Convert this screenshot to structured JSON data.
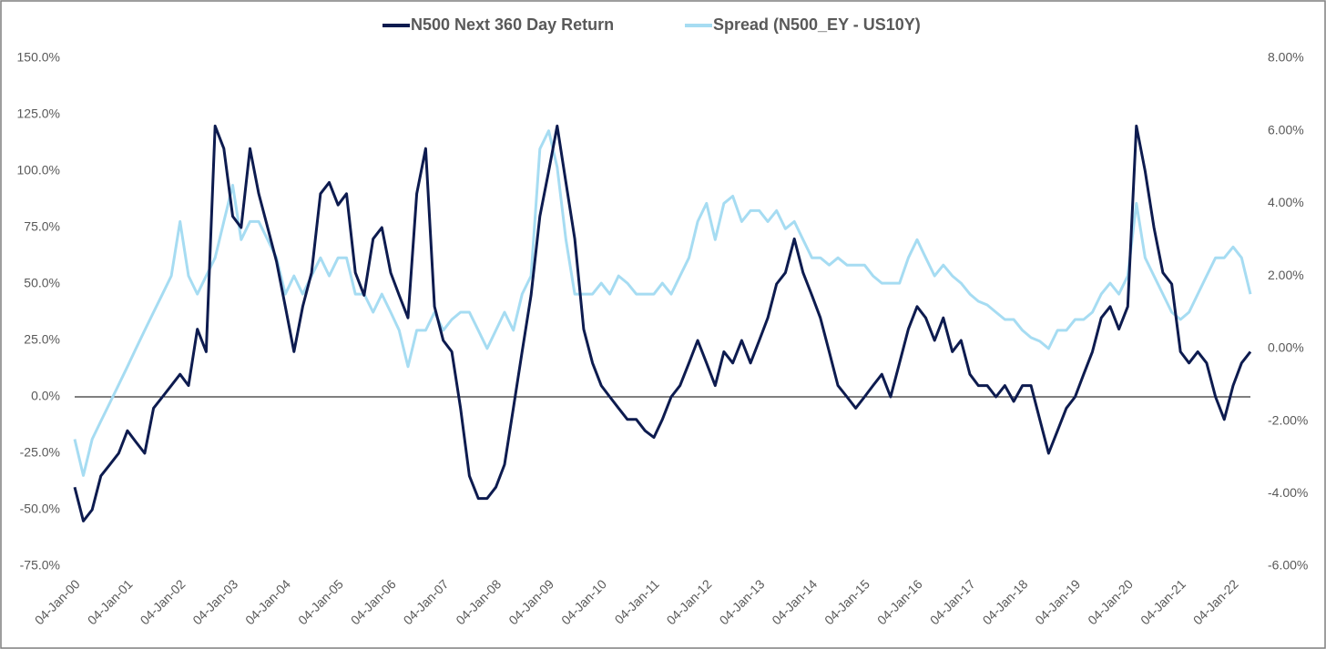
{
  "chart_data": {
    "type": "line",
    "x": [
      "2000-01-04",
      "2000-03-04",
      "2000-05-04",
      "2000-07-04",
      "2000-09-04",
      "2000-11-04",
      "2001-01-04",
      "2001-03-04",
      "2001-05-04",
      "2001-07-04",
      "2001-09-04",
      "2001-11-04",
      "2002-01-04",
      "2002-03-04",
      "2002-05-04",
      "2002-07-04",
      "2002-09-04",
      "2002-11-04",
      "2003-01-04",
      "2003-03-04",
      "2003-05-04",
      "2003-07-04",
      "2003-09-04",
      "2003-11-04",
      "2004-01-04",
      "2004-03-04",
      "2004-05-04",
      "2004-07-04",
      "2004-09-04",
      "2004-11-04",
      "2005-01-04",
      "2005-03-04",
      "2005-05-04",
      "2005-07-04",
      "2005-09-04",
      "2005-11-04",
      "2006-01-04",
      "2006-03-04",
      "2006-05-04",
      "2006-07-04",
      "2006-09-04",
      "2006-11-04",
      "2007-01-04",
      "2007-03-04",
      "2007-05-04",
      "2007-07-04",
      "2007-09-04",
      "2007-11-04",
      "2008-01-04",
      "2008-03-04",
      "2008-05-04",
      "2008-07-04",
      "2008-09-04",
      "2008-11-04",
      "2009-01-04",
      "2009-03-04",
      "2009-05-04",
      "2009-07-04",
      "2009-09-04",
      "2009-11-04",
      "2010-01-04",
      "2010-03-04",
      "2010-05-04",
      "2010-07-04",
      "2010-09-04",
      "2010-11-04",
      "2011-01-04",
      "2011-03-04",
      "2011-05-04",
      "2011-07-04",
      "2011-09-04",
      "2011-11-04",
      "2012-01-04",
      "2012-03-04",
      "2012-05-04",
      "2012-07-04",
      "2012-09-04",
      "2012-11-04",
      "2013-01-04",
      "2013-03-04",
      "2013-05-04",
      "2013-07-04",
      "2013-09-04",
      "2013-11-04",
      "2014-01-04",
      "2014-03-04",
      "2014-05-04",
      "2014-07-04",
      "2014-09-04",
      "2014-11-04",
      "2015-01-04",
      "2015-03-04",
      "2015-05-04",
      "2015-07-04",
      "2015-09-04",
      "2015-11-04",
      "2016-01-04",
      "2016-03-04",
      "2016-05-04",
      "2016-07-04",
      "2016-09-04",
      "2016-11-04",
      "2017-01-04",
      "2017-03-04",
      "2017-05-04",
      "2017-07-04",
      "2017-09-04",
      "2017-11-04",
      "2018-01-04",
      "2018-03-04",
      "2018-05-04",
      "2018-07-04",
      "2018-09-04",
      "2018-11-04",
      "2019-01-04",
      "2019-03-04",
      "2019-05-04",
      "2019-07-04",
      "2019-09-04",
      "2019-11-04",
      "2020-01-04",
      "2020-03-04",
      "2020-05-04",
      "2020-07-04",
      "2020-09-04",
      "2020-11-04",
      "2021-01-04",
      "2021-03-04",
      "2021-05-04",
      "2021-07-04",
      "2021-09-04",
      "2021-11-04",
      "2022-01-04",
      "2022-03-04",
      "2022-05-04"
    ],
    "series": [
      {
        "name": "N500 Next 360 Day Return",
        "color": "#0d1b4f",
        "values": [
          -40,
          -55,
          -50,
          -35,
          -30,
          -25,
          -15,
          -20,
          -25,
          -5,
          0,
          5,
          10,
          5,
          30,
          20,
          120,
          110,
          80,
          75,
          110,
          90,
          75,
          60,
          40,
          20,
          40,
          55,
          90,
          95,
          85,
          90,
          55,
          45,
          70,
          75,
          55,
          45,
          35,
          90,
          110,
          40,
          25,
          20,
          -5,
          -35,
          -45,
          -45,
          -40,
          -30,
          -5,
          20,
          45,
          80,
          100,
          120,
          95,
          70,
          30,
          15,
          5,
          0,
          -5,
          -10,
          -10,
          -15,
          -18,
          -10,
          0,
          5,
          15,
          25,
          15,
          5,
          20,
          15,
          25,
          15,
          25,
          35,
          50,
          55,
          70,
          55,
          45,
          35,
          20,
          5,
          0,
          -5,
          0,
          5,
          10,
          0,
          15,
          30,
          40,
          35,
          25,
          35,
          20,
          25,
          10,
          5,
          5,
          0,
          5,
          -2,
          5,
          5,
          -10,
          -25,
          -15,
          -5,
          0,
          10,
          20,
          35,
          40,
          30,
          40,
          120,
          100,
          75,
          55,
          50,
          20,
          15,
          20,
          15,
          0,
          -10,
          5,
          15,
          20
        ]
      },
      {
        "name": "Spread (N500_EY - US10Y)",
        "color": "#a6dcf2",
        "axis": "y2",
        "values": [
          -2.5,
          -3.5,
          -2.5,
          -2.0,
          -1.5,
          -1.0,
          -0.5,
          0,
          0.5,
          1.0,
          1.5,
          2.0,
          3.5,
          2.0,
          1.5,
          2.0,
          2.5,
          3.5,
          4.5,
          3.0,
          3.5,
          3.5,
          3.0,
          2.5,
          1.5,
          2.0,
          1.5,
          2.0,
          2.5,
          2.0,
          2.5,
          2.5,
          1.5,
          1.5,
          1.0,
          1.5,
          1.0,
          0.5,
          -0.5,
          0.5,
          0.5,
          1.0,
          0.5,
          0.8,
          1.0,
          1.0,
          0.5,
          0,
          0.5,
          1.0,
          0.5,
          1.5,
          2.0,
          5.5,
          6.0,
          5.0,
          3.0,
          1.5,
          1.5,
          1.5,
          1.8,
          1.5,
          2.0,
          1.8,
          1.5,
          1.5,
          1.5,
          1.8,
          1.5,
          2.0,
          2.5,
          3.5,
          4.0,
          3.0,
          4.0,
          4.2,
          3.5,
          3.8,
          3.8,
          3.5,
          3.8,
          3.3,
          3.5,
          3.0,
          2.5,
          2.5,
          2.3,
          2.5,
          2.3,
          2.3,
          2.3,
          2.0,
          1.8,
          1.8,
          1.8,
          2.5,
          3.0,
          2.5,
          2.0,
          2.3,
          2.0,
          1.8,
          1.5,
          1.3,
          1.2,
          1.0,
          0.8,
          0.8,
          0.5,
          0.3,
          0.2,
          0.0,
          0.5,
          0.5,
          0.8,
          0.8,
          1.0,
          1.5,
          1.8,
          1.5,
          2.0,
          4.0,
          2.5,
          2.0,
          1.5,
          1.0,
          0.8,
          1.0,
          1.5,
          2.0,
          2.5,
          2.5,
          2.8,
          2.5,
          1.5
        ]
      }
    ],
    "xlim": [
      "2000-01-04",
      "2022-05-04"
    ],
    "xticks": [
      {
        "value": "2000-01-04",
        "label": "04-Jan-00"
      },
      {
        "value": "2001-01-04",
        "label": "04-Jan-01"
      },
      {
        "value": "2002-01-04",
        "label": "04-Jan-02"
      },
      {
        "value": "2003-01-04",
        "label": "04-Jan-03"
      },
      {
        "value": "2004-01-04",
        "label": "04-Jan-04"
      },
      {
        "value": "2005-01-04",
        "label": "04-Jan-05"
      },
      {
        "value": "2006-01-04",
        "label": "04-Jan-06"
      },
      {
        "value": "2007-01-04",
        "label": "04-Jan-07"
      },
      {
        "value": "2008-01-04",
        "label": "04-Jan-08"
      },
      {
        "value": "2009-01-04",
        "label": "04-Jan-09"
      },
      {
        "value": "2010-01-04",
        "label": "04-Jan-10"
      },
      {
        "value": "2011-01-04",
        "label": "04-Jan-11"
      },
      {
        "value": "2012-01-04",
        "label": "04-Jan-12"
      },
      {
        "value": "2013-01-04",
        "label": "04-Jan-13"
      },
      {
        "value": "2014-01-04",
        "label": "04-Jan-14"
      },
      {
        "value": "2015-01-04",
        "label": "04-Jan-15"
      },
      {
        "value": "2016-01-04",
        "label": "04-Jan-16"
      },
      {
        "value": "2017-01-04",
        "label": "04-Jan-17"
      },
      {
        "value": "2018-01-04",
        "label": "04-Jan-18"
      },
      {
        "value": "2019-01-04",
        "label": "04-Jan-19"
      },
      {
        "value": "2020-01-04",
        "label": "04-Jan-20"
      },
      {
        "value": "2021-01-04",
        "label": "04-Jan-21"
      },
      {
        "value": "2022-01-04",
        "label": "04-Jan-22"
      }
    ],
    "ylim": [
      -75,
      150
    ],
    "yticks": [
      {
        "value": -75,
        "label": "-75.0%"
      },
      {
        "value": -50,
        "label": "-50.0%"
      },
      {
        "value": -25,
        "label": "-25.0%"
      },
      {
        "value": 0,
        "label": "0.0%"
      },
      {
        "value": 25,
        "label": "25.0%"
      },
      {
        "value": 50,
        "label": "50.0%"
      },
      {
        "value": 75,
        "label": "75.0%"
      },
      {
        "value": 100,
        "label": "100.0%"
      },
      {
        "value": 125,
        "label": "125.0%"
      },
      {
        "value": 150,
        "label": "150.0%"
      }
    ],
    "y2lim": [
      -6,
      8
    ],
    "y2ticks": [
      {
        "value": -6,
        "label": "-6.00%"
      },
      {
        "value": -4,
        "label": "-4.00%"
      },
      {
        "value": -2,
        "label": "-2.00%"
      },
      {
        "value": 0,
        "label": "0.00%"
      },
      {
        "value": 2,
        "label": "2.00%"
      },
      {
        "value": 4,
        "label": "4.00%"
      },
      {
        "value": 6,
        "label": "6.00%"
      },
      {
        "value": 8,
        "label": "8.00%"
      }
    ],
    "legend": "top"
  }
}
